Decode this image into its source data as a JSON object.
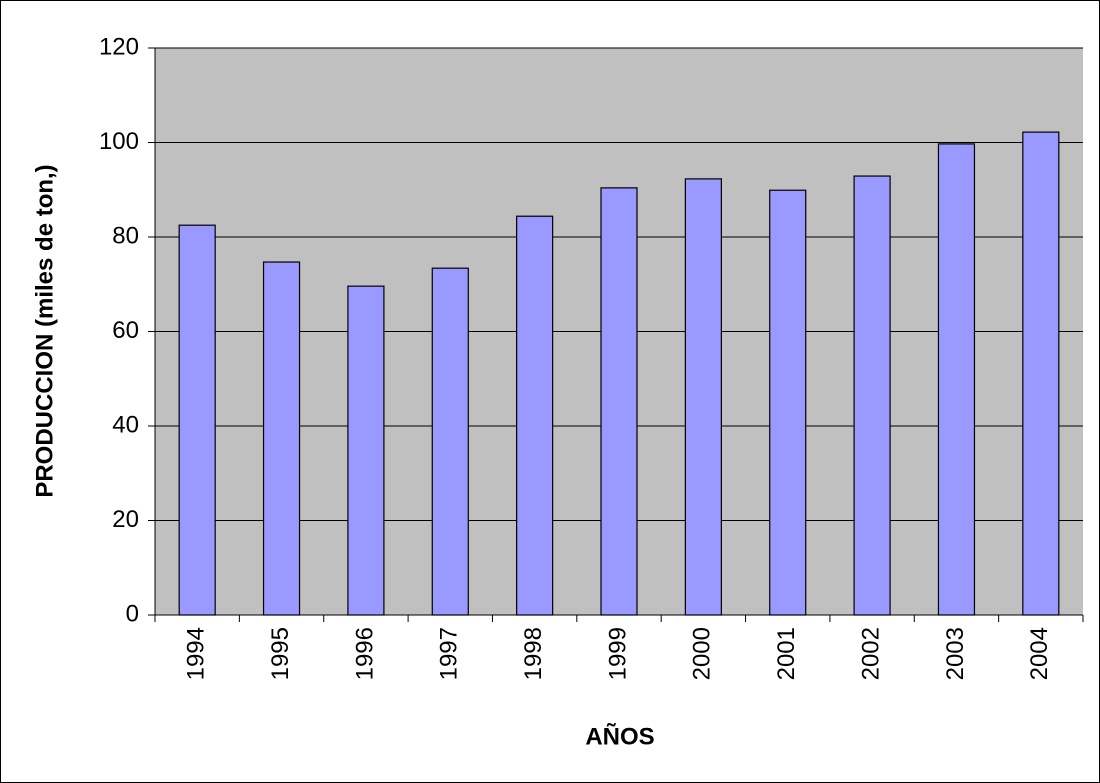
{
  "chart_data": {
    "type": "bar",
    "x_label": "AÑOS",
    "y_label": "PRODUCCION (miles de ton,)",
    "categories": [
      "1994",
      "1995",
      "1996",
      "1997",
      "1998",
      "1999",
      "2000",
      "2001",
      "2002",
      "2003",
      "2004"
    ],
    "values": [
      82.5,
      74.7,
      69.6,
      73.4,
      84.4,
      90.4,
      92.3,
      89.9,
      92.9,
      99.7,
      102.2
    ],
    "color": "#9999ff",
    "ylim": [
      0,
      120
    ],
    "yticks": [
      0,
      20,
      40,
      60,
      80,
      100,
      120
    ],
    "grid": true
  }
}
